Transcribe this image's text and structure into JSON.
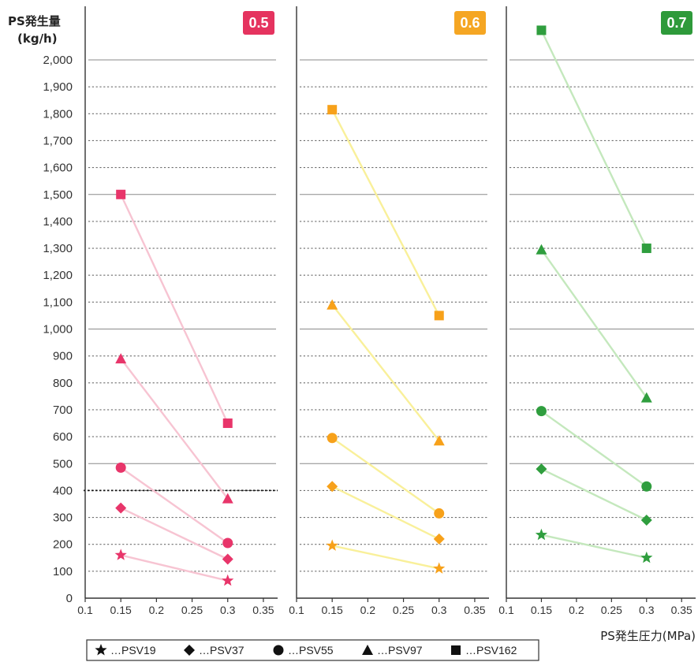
{
  "chart_data": {
    "type": "line",
    "ylabel_line1": "PS発生量",
    "ylabel_line2": "(kg/h)",
    "xlabel": "PS発生圧力(MPa)",
    "ylim": [
      0,
      2100
    ],
    "xlim": [
      0.1,
      0.37
    ],
    "y_ticks": [
      0,
      100,
      200,
      300,
      400,
      500,
      600,
      700,
      800,
      900,
      1000,
      1100,
      1200,
      1300,
      1400,
      1500,
      1600,
      1700,
      1800,
      1900,
      2000
    ],
    "y_tick_labels": [
      "0",
      "100",
      "200",
      "300",
      "400",
      "500",
      "600",
      "700",
      "800",
      "900",
      "1,000",
      "1,100",
      "1,200",
      "1,300",
      "1,400",
      "1,500",
      "1,600",
      "1,700",
      "1,800",
      "1,900",
      "2,000"
    ],
    "x_ticks": [
      0.1,
      0.15,
      0.2,
      0.25,
      0.3,
      0.35
    ],
    "x_tick_labels": [
      "0.1",
      "0.15",
      "0.2",
      "0.25",
      "0.3",
      "0.35"
    ],
    "grid": "dashed horizontal, solid every 500",
    "legend_placement": "bottom",
    "legend": [
      {
        "name": "PSV19",
        "symbol": "star",
        "label": "…PSV19"
      },
      {
        "name": "PSV37",
        "symbol": "diamond",
        "label": "…PSV37"
      },
      {
        "name": "PSV55",
        "symbol": "circle",
        "label": "…PSV55"
      },
      {
        "name": "PSV97",
        "symbol": "triangle",
        "label": "…PSV97"
      },
      {
        "name": "PSV162",
        "symbol": "square",
        "label": "…PSV162"
      }
    ],
    "panels": [
      {
        "badge": "0.5",
        "badge_color": "#e5335f",
        "marker_color": "#e8356a",
        "line_color": "#f7c4d2",
        "reference_line_y": 400,
        "series": [
          {
            "name": "PSV19",
            "x": [
              0.15,
              0.3
            ],
            "y": [
              160,
              65
            ]
          },
          {
            "name": "PSV37",
            "x": [
              0.15,
              0.3
            ],
            "y": [
              335,
              145
            ]
          },
          {
            "name": "PSV55",
            "x": [
              0.15,
              0.3
            ],
            "y": [
              485,
              205
            ]
          },
          {
            "name": "PSV97",
            "x": [
              0.15,
              0.3
            ],
            "y": [
              890,
              370
            ]
          },
          {
            "name": "PSV162",
            "x": [
              0.15,
              0.3
            ],
            "y": [
              1500,
              650
            ]
          }
        ]
      },
      {
        "badge": "0.6",
        "badge_color": "#f5a623",
        "marker_color": "#f7a11a",
        "line_color": "#f9f09a",
        "series": [
          {
            "name": "PSV19",
            "x": [
              0.15,
              0.3
            ],
            "y": [
              195,
              110
            ]
          },
          {
            "name": "PSV37",
            "x": [
              0.15,
              0.3
            ],
            "y": [
              415,
              220
            ]
          },
          {
            "name": "PSV55",
            "x": [
              0.15,
              0.3
            ],
            "y": [
              595,
              315
            ]
          },
          {
            "name": "PSV97",
            "x": [
              0.15,
              0.3
            ],
            "y": [
              1090,
              585
            ]
          },
          {
            "name": "PSV162",
            "x": [
              0.15,
              0.3
            ],
            "y": [
              1815,
              1050
            ]
          }
        ]
      },
      {
        "badge": "0.7",
        "badge_color": "#2e9a3a",
        "marker_color": "#2f9e3e",
        "line_color": "#c4e8bd",
        "series": [
          {
            "name": "PSV19",
            "x": [
              0.15,
              0.3
            ],
            "y": [
              235,
              150
            ]
          },
          {
            "name": "PSV37",
            "x": [
              0.15,
              0.3
            ],
            "y": [
              480,
              290
            ]
          },
          {
            "name": "PSV55",
            "x": [
              0.15,
              0.3
            ],
            "y": [
              695,
              415
            ]
          },
          {
            "name": "PSV97",
            "x": [
              0.15,
              0.3
            ],
            "y": [
              1295,
              745
            ]
          },
          {
            "name": "PSV162",
            "x": [
              0.15,
              0.3
            ],
            "y": [
              2110,
              1300
            ]
          }
        ]
      }
    ]
  }
}
